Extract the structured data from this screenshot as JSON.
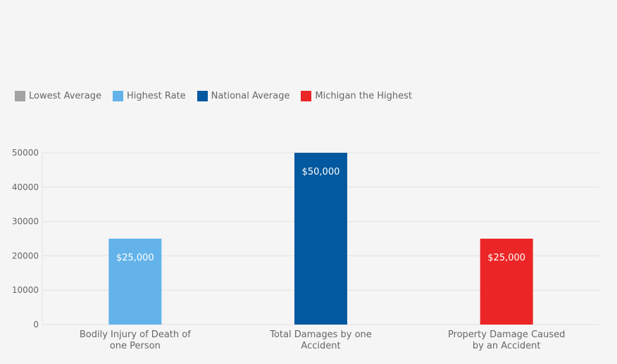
{
  "chart_data": {
    "type": "bar",
    "legend": [
      {
        "label": "Lowest Average",
        "color": "#a3a3a3"
      },
      {
        "label": "Highest Rate",
        "color": "#63b3ea"
      },
      {
        "label": "National Average",
        "color": "#02599f"
      },
      {
        "label": "Michigan the Highest",
        "color": "#ec2526"
      }
    ],
    "categories": [
      [
        "Bodily Injury of Death of",
        "one Person"
      ],
      [
        "Total Damages by one",
        "Accident"
      ],
      [
        "Property Damage Caused",
        "by an Accident"
      ]
    ],
    "values": [
      25000,
      50000,
      25000
    ],
    "bar_colors": [
      "#63b3ea",
      "#02599f",
      "#ec2526"
    ],
    "data_labels": [
      "$25,000",
      "$50,000",
      "$25,000"
    ],
    "ylim": [
      0,
      50000
    ],
    "yticks": [
      "0",
      "10000",
      "20000",
      "30000",
      "40000",
      "50000"
    ],
    "grid": true,
    "legend_position": "top-left"
  }
}
